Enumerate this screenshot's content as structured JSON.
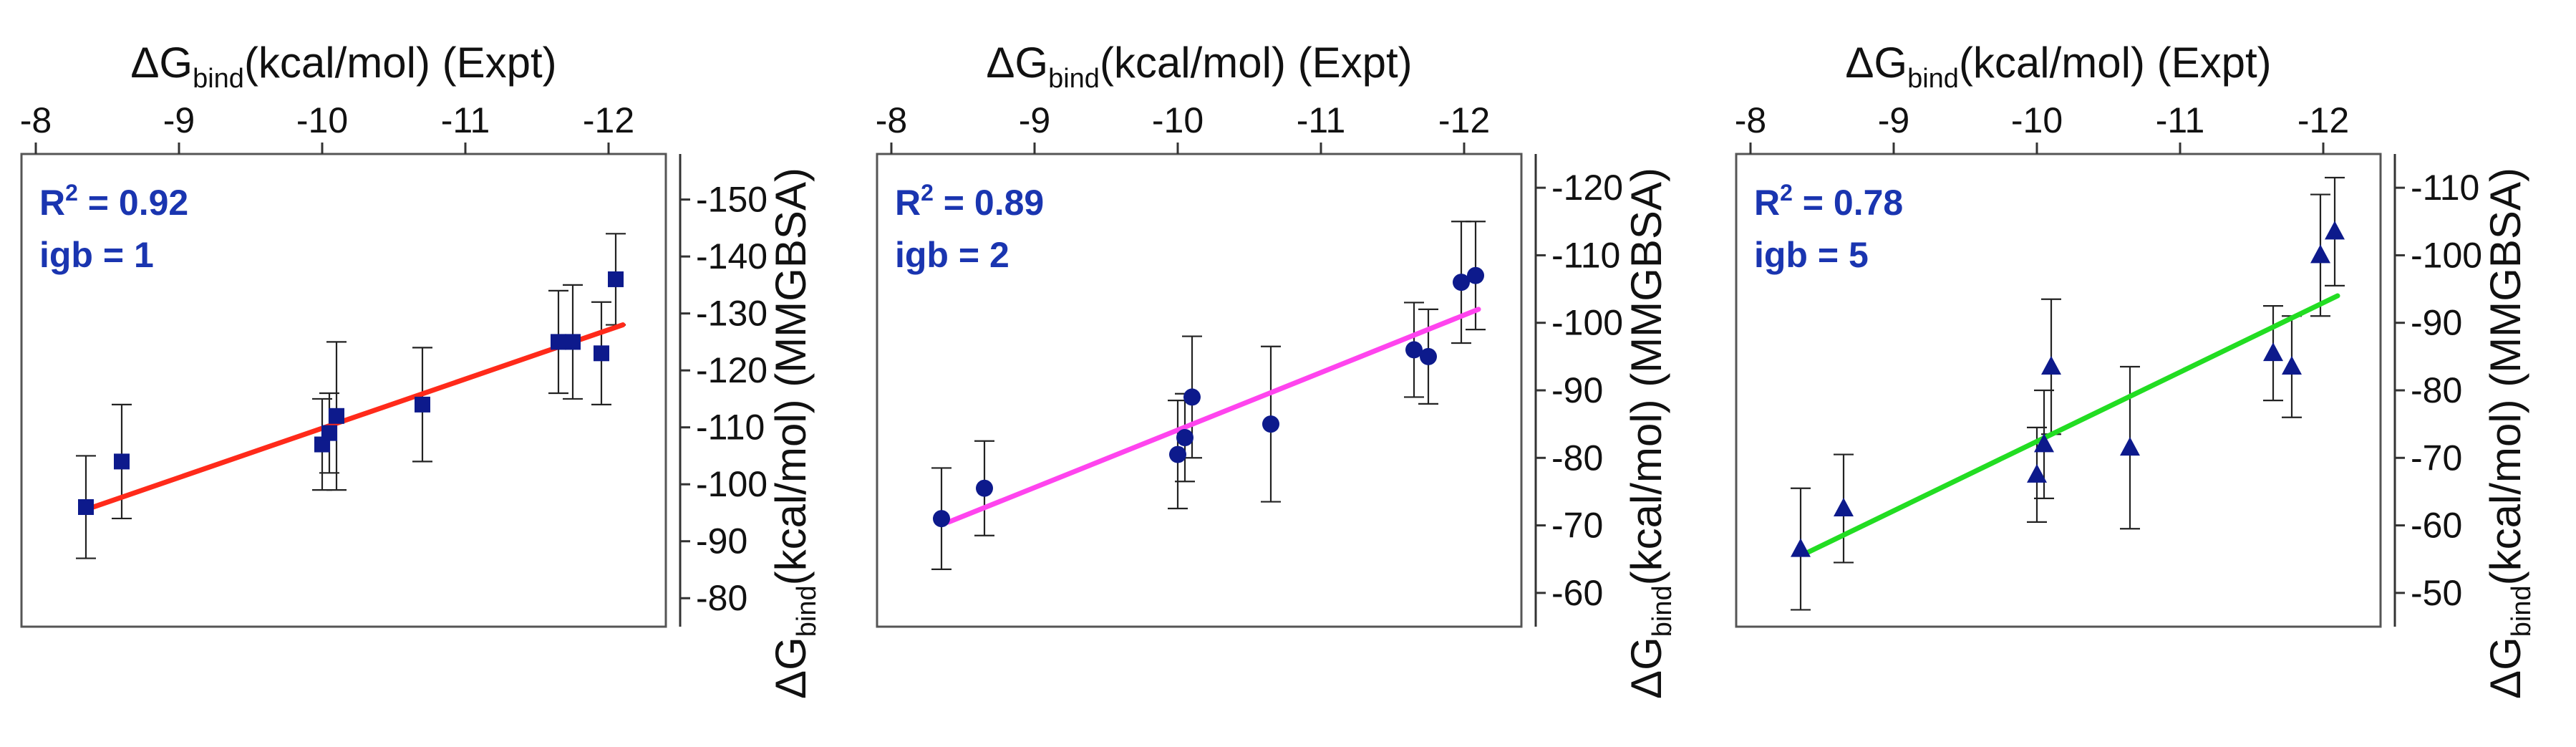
{
  "chart_data": [
    {
      "type": "scatter",
      "title": "",
      "xlabel": {
        "prefix": "ΔG",
        "sub": "bind",
        "suffix": "(kcal/mol) (Expt)"
      },
      "ylabel": {
        "prefix": "ΔG",
        "sub": "bind",
        "suffix": "(kcal/mol) (MMGBSA)"
      },
      "xlim": [
        -7.9,
        -12.4
      ],
      "ylim": [
        -75,
        -158
      ],
      "xticks": [
        -8,
        -9,
        -10,
        -11,
        -12
      ],
      "xtick_labels": [
        "-8",
        "-9",
        "-10",
        "-11",
        "-12"
      ],
      "yticks": [
        -80,
        -90,
        -100,
        -110,
        -120,
        -130,
        -140,
        -150
      ],
      "ytick_labels": [
        "-80",
        "-90",
        "-100",
        "-110",
        "-120",
        "-130",
        "-140",
        "-150"
      ],
      "marker": "square",
      "marker_color": "#0d1a8c",
      "fit_color": "#ff2a1a",
      "fit_line": {
        "x": [
          -8.4,
          -12.1
        ],
        "y": [
          -96,
          -128
        ]
      },
      "annotation": {
        "r2_prefix": "R",
        "r2_exp": "2",
        "r2_value": " = 0.92",
        "igb": "igb = 1"
      },
      "points": [
        {
          "x": -8.35,
          "y": -96,
          "err": 9
        },
        {
          "x": -8.6,
          "y": -104,
          "err": 10
        },
        {
          "x": -10.0,
          "y": -107,
          "err": 8
        },
        {
          "x": -10.05,
          "y": -109,
          "err": 7
        },
        {
          "x": -10.1,
          "y": -112,
          "err": 13
        },
        {
          "x": -10.7,
          "y": -114,
          "err": 10
        },
        {
          "x": -11.65,
          "y": -125,
          "err": 9
        },
        {
          "x": -11.75,
          "y": -125,
          "err": 10
        },
        {
          "x": -11.95,
          "y": -123,
          "err": 9
        },
        {
          "x": -12.05,
          "y": -136,
          "err": 8
        }
      ]
    },
    {
      "type": "scatter",
      "title": "",
      "xlabel": {
        "prefix": "ΔG",
        "sub": "bind",
        "suffix": "(kcal/mol) (Expt)"
      },
      "ylabel": {
        "prefix": "ΔG",
        "sub": "bind",
        "suffix": "(kcal/mol) (MMGBSA)"
      },
      "xlim": [
        -7.9,
        -12.4
      ],
      "ylim": [
        -55,
        -125
      ],
      "xticks": [
        -8,
        -9,
        -10,
        -11,
        -12
      ],
      "xtick_labels": [
        "-8",
        "-9",
        "-10",
        "-11",
        "-12"
      ],
      "yticks": [
        -60,
        -70,
        -80,
        -90,
        -100,
        -110,
        -120
      ],
      "ytick_labels": [
        "-60",
        "-70",
        "-80",
        "-90",
        "-100",
        "-110",
        "-120"
      ],
      "marker": "circle",
      "marker_color": "#0d1a8c",
      "fit_color": "#ff44ee",
      "fit_line": {
        "x": [
          -8.4,
          -12.1
        ],
        "y": [
          -70.5,
          -102
        ]
      },
      "annotation": {
        "r2_prefix": "R",
        "r2_exp": "2",
        "r2_value": " = 0.89",
        "igb": "igb = 2"
      },
      "points": [
        {
          "x": -8.35,
          "y": -71,
          "err": 7.5
        },
        {
          "x": -8.65,
          "y": -75.5,
          "err": 7
        },
        {
          "x": -10.0,
          "y": -80.5,
          "err": 8
        },
        {
          "x": -10.05,
          "y": -83,
          "err": 6.5
        },
        {
          "x": -10.1,
          "y": -89,
          "err": 9
        },
        {
          "x": -10.65,
          "y": -85,
          "err": 11.5
        },
        {
          "x": -11.65,
          "y": -96,
          "err": 7
        },
        {
          "x": -11.75,
          "y": -95,
          "err": 7
        },
        {
          "x": -11.98,
          "y": -106,
          "err": 9
        },
        {
          "x": -12.08,
          "y": -107,
          "err": 8
        }
      ]
    },
    {
      "type": "scatter",
      "title": "",
      "xlabel": {
        "prefix": "ΔG",
        "sub": "bind",
        "suffix": "(kcal/mol) (Expt)"
      },
      "ylabel": {
        "prefix": "ΔG",
        "sub": "bind",
        "suffix": "(kcal/mol) (MMGBSA)"
      },
      "xlim": [
        -7.9,
        -12.4
      ],
      "ylim": [
        -45,
        -115
      ],
      "xticks": [
        -8,
        -9,
        -10,
        -11,
        -12
      ],
      "xtick_labels": [
        "-8",
        "-9",
        "-10",
        "-11",
        "-12"
      ],
      "yticks": [
        -50,
        -60,
        -70,
        -80,
        -90,
        -100,
        -110
      ],
      "ytick_labels": [
        "-50",
        "-60",
        "-70",
        "-80",
        "-90",
        "-100",
        "-110"
      ],
      "marker": "triangle",
      "marker_color": "#0d1a8c",
      "fit_color": "#22dd22",
      "fit_line": {
        "x": [
          -8.4,
          -12.1
        ],
        "y": [
          -56,
          -94
        ]
      },
      "annotation": {
        "r2_prefix": "R",
        "r2_exp": "2",
        "r2_value": " = 0.78",
        "igb": "igb = 5"
      },
      "points": [
        {
          "x": -8.35,
          "y": -56.5,
          "err": 9
        },
        {
          "x": -8.65,
          "y": -62.5,
          "err": 8
        },
        {
          "x": -10.0,
          "y": -67.5,
          "err": 7
        },
        {
          "x": -10.05,
          "y": -72,
          "err": 8
        },
        {
          "x": -10.1,
          "y": -83.5,
          "err": 10
        },
        {
          "x": -10.65,
          "y": -71.5,
          "err": 12
        },
        {
          "x": -11.65,
          "y": -85.5,
          "err": 7
        },
        {
          "x": -11.78,
          "y": -83.5,
          "err": 7.5
        },
        {
          "x": -11.98,
          "y": -100,
          "err": 9
        },
        {
          "x": -12.08,
          "y": -103.5,
          "err": 8
        }
      ]
    }
  ]
}
